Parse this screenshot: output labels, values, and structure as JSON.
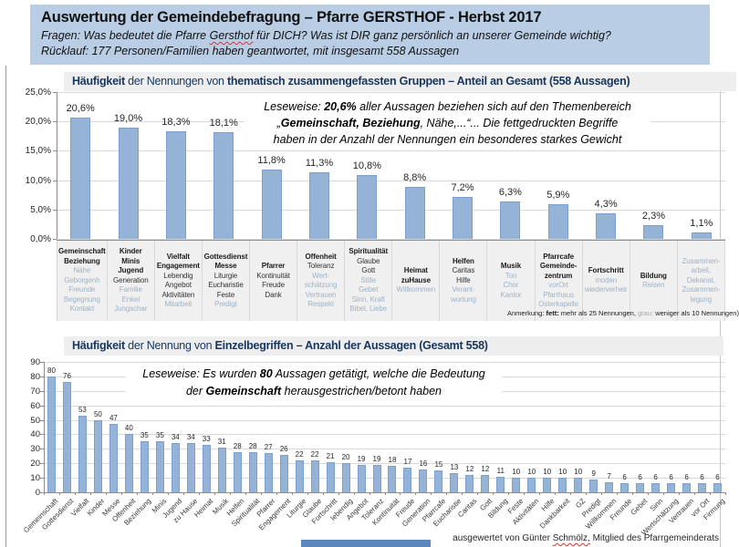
{
  "header": {
    "title": "Auswertung der Gemeindebefragung – Pfarre GERSTHOF  -  Herbst 2017",
    "line2_parts": [
      {
        "t": "Fragen: Was bedeutet die Pfarre "
      },
      {
        "t": "Gersthof",
        "sp": true
      },
      {
        "t": " für DICH? Was ist DIR ganz persönlich an unserer Gemeinde wichtig?"
      }
    ],
    "line3": "Rücklauf: 177 Personen/Familien haben geantwortet, mit insgesamt 558 Aussagen"
  },
  "colors": {
    "header_bg": "#b9cde4",
    "bar_fill": "#95b3d7",
    "bar_border": "#7ba0cd",
    "chart_title": "#17365d",
    "title_band_bg": "#eeeeee",
    "gray_term_text": "#9db3c8",
    "spell_underline": "#d23c2a"
  },
  "chart1": {
    "title_parts": [
      {
        "t": "Häufigkeit",
        "b": true
      },
      {
        "t": " der Nennungen von  "
      },
      {
        "t": "thematisch zusammengefassten Gruppen – Anteil an Gesamt (558 Aussagen)",
        "b": true
      }
    ],
    "y_tick_labels": [
      "25,0%",
      "20,0%",
      "15,0%",
      "10,0%",
      "5,0%",
      "0,0%"
    ],
    "leseweise_lines": [
      [
        {
          "t": "Leseweise: "
        },
        {
          "t": "20,6%",
          "b": true
        },
        {
          "t": " aller  Aussagen beziehen sich auf den Themenbereich"
        }
      ],
      [
        {
          "t": "„"
        },
        {
          "t": "Gemeinschaft, Beziehung",
          "b": true
        },
        {
          "t": ", Nähe,...“... Die fettgedruckten Begriffe"
        }
      ],
      [
        {
          "t": "haben in der Anzahl der Nennungen ein besonderes starkes Gewicht"
        }
      ]
    ],
    "note_parts": [
      {
        "t": "Anmerkung: "
      },
      {
        "t": "fett:",
        "b": true
      },
      {
        "t": " mehr als 25 Nennungen, "
      },
      {
        "t": "grau:",
        "g": true
      },
      {
        "t": " weniger als 10 Nennungen)"
      }
    ]
  },
  "chart2": {
    "title_parts": [
      {
        "t": "Häufigkeit",
        "b": true
      },
      {
        "t": " der Nennung von "
      },
      {
        "t": "Einzelbegriffen – Anzahl der Aussagen (Gesamt 558)",
        "b": true
      }
    ],
    "y_tick_labels": [
      "90",
      "80",
      "70",
      "60",
      "50",
      "40",
      "30",
      "20",
      "10",
      "0"
    ],
    "leseweise_lines": [
      [
        {
          "t": "Leseweise: Es wurden "
        },
        {
          "t": "80",
          "b": true
        },
        {
          "t": " Aussagen getätigt, welche die Bedeutung"
        }
      ],
      [
        {
          "t": " der "
        },
        {
          "t": "Gemeinschaft",
          "b": true
        },
        {
          "t": " herausgestrichen/betont haben"
        }
      ]
    ]
  },
  "footer_parts": [
    {
      "t": "ausgewertet von Günter "
    },
    {
      "t": "Schmölz,",
      "sp": true
    },
    {
      "t": " Mitglied des Pfarrgemeinderats"
    }
  ],
  "chart_data": [
    {
      "type": "bar",
      "title": "Häufigkeit der Nennungen von thematisch zusammengefassten Gruppen – Anteil an Gesamt (558 Aussagen)",
      "xlabel": "",
      "ylabel": "",
      "ylim": [
        0,
        25
      ],
      "ytick_step": 5,
      "grid": true,
      "values": [
        20.6,
        19.0,
        18.3,
        18.1,
        11.8,
        11.3,
        10.8,
        8.8,
        7.2,
        6.3,
        5.9,
        4.3,
        2.3,
        1.1
      ],
      "value_labels": [
        "20,6%",
        "19,0%",
        "18,3%",
        "18,1%",
        "11,8%",
        "11,3%",
        "10,8%",
        "8,8%",
        "7,2%",
        "6,3%",
        "5,9%",
        "4,3%",
        "2,3%",
        "1,1%"
      ],
      "categories": [
        "Gemeinschaft Beziehung",
        "Kinder Minis Jugend",
        "Vielfalt Engagement",
        "Gottesdienst Messe",
        "Pfarrer",
        "Offenheit",
        "Spiritualität",
        "Heimat zuHause",
        "Helfen",
        "Musik",
        "Pfarrcafe Gemeindezentrum",
        "Fortschritt",
        "Bildung",
        "Zusammenarbeit, Dekanat, Zusammenlegung"
      ],
      "category_lines": [
        [
          [
            "b",
            "Gemeinschaft"
          ],
          [
            "b",
            "Beziehung"
          ],
          [
            "g",
            "Nähe"
          ],
          [
            "g",
            "Geborgenh"
          ],
          [
            "g",
            "Freunde"
          ],
          [
            "g",
            "Begegnung"
          ],
          [
            "g",
            "Kontakt"
          ]
        ],
        [
          [
            "b",
            "Kinder"
          ],
          [
            "b",
            "Minis"
          ],
          [
            "b",
            "Jugend"
          ],
          [
            "n",
            "Generation"
          ],
          [
            "g",
            "Familie"
          ],
          [
            "g",
            "Enkel"
          ],
          [
            "g",
            "Jungschar"
          ]
        ],
        [
          [
            "b",
            "Vielfalt"
          ],
          [
            "b",
            "Engagement"
          ],
          [
            "n",
            "Lebendig"
          ],
          [
            "n",
            "Angebot"
          ],
          [
            "n",
            "Aktivitäten"
          ],
          [
            "g",
            "Mitarbeit"
          ]
        ],
        [
          [
            "b",
            "Gottesdienst"
          ],
          [
            "b",
            "Messe"
          ],
          [
            "n",
            "Liturgie"
          ],
          [
            "n",
            "Eucharistie"
          ],
          [
            "n",
            "Feste"
          ],
          [
            "g",
            "Predigt"
          ]
        ],
        [
          [
            "b",
            "Pfarrer"
          ],
          [
            "n",
            "Kontinuität"
          ],
          [
            "n",
            "Freude"
          ],
          [
            "n",
            "Dank"
          ]
        ],
        [
          [
            "b",
            "Offenheit"
          ],
          [
            "n",
            "Toleranz"
          ],
          [
            "g",
            "Wert-"
          ],
          [
            "g",
            "schätzung"
          ],
          [
            "g",
            "Vertrauen"
          ],
          [
            "g",
            "Respekt"
          ]
        ],
        [
          [
            "b",
            "Spiritualität"
          ],
          [
            "n",
            "Glaube"
          ],
          [
            "n",
            "Gott"
          ],
          [
            "g",
            "Stille"
          ],
          [
            "g",
            "Gebet"
          ],
          [
            "g",
            "Sinn, Kraft"
          ],
          [
            "g",
            "Bibel, Liebe"
          ]
        ],
        [
          [
            "b",
            "Heimat"
          ],
          [
            "b",
            "zuHause"
          ],
          [
            "g",
            "Willkommen"
          ]
        ],
        [
          [
            "b",
            "Helfen"
          ],
          [
            "n",
            "Caritas"
          ],
          [
            "n",
            "Hilfe"
          ],
          [
            "g",
            "Verant-"
          ],
          [
            "g",
            "wortung"
          ]
        ],
        [
          [
            "b",
            "Musik"
          ],
          [
            "g",
            "Ton"
          ],
          [
            "g",
            "Chor"
          ],
          [
            "g",
            "Kantor"
          ]
        ],
        [
          [
            "b",
            "Pfarrcafe"
          ],
          [
            "b",
            "Gemeinde-"
          ],
          [
            "b",
            "zentrum"
          ],
          [
            "g",
            "vorOrt"
          ],
          [
            "g",
            "Pfarrhaus"
          ],
          [
            "g",
            "Osterkapelle"
          ]
        ],
        [
          [
            "b",
            "Fortschritt"
          ],
          [
            "g",
            "moden"
          ],
          [
            "g",
            "wiederverheir"
          ]
        ],
        [
          [
            "b",
            "Bildung"
          ],
          [
            "g",
            "Reisen"
          ]
        ],
        [
          [
            "g",
            "Zusammen-"
          ],
          [
            "g",
            "arbeit,"
          ],
          [
            "g",
            "Dekanat,"
          ],
          [
            "g",
            "Zusammen-"
          ],
          [
            "g",
            "legung"
          ]
        ]
      ]
    },
    {
      "type": "bar",
      "title": "Häufigkeit der Nennung von Einzelbegriffen – Anzahl der Aussagen (Gesamt 558)",
      "xlabel": "",
      "ylabel": "",
      "ylim": [
        0,
        90
      ],
      "ytick_step": 10,
      "grid": true,
      "categories": [
        "Gemeinschaft",
        "Gottesdienst",
        "Vielfalt",
        "Kinder",
        "Messe",
        "Offenheit",
        "Beziehung",
        "Minis",
        "Jugend",
        "zu Hause",
        "Heimat",
        "Musik",
        "Helfen",
        "Spiritualität",
        "Pfarrer",
        "Engagement",
        "Liturgie",
        "Glaube",
        "Fortschritt",
        "lebendig",
        "Angebot",
        "Toleranz",
        "Kontinuität",
        "Freude",
        "Generation",
        "Pfarrcafe",
        "Eucharistie",
        "Caritas",
        "Gott",
        "Bildung",
        "Feste",
        "Aktivitäten",
        "Hilfe",
        "Dankbarkeit",
        "GZ",
        "Predigt",
        "Willkommen",
        "Freunde",
        "Gebet",
        "Sinn",
        "Wertschätzung",
        "Vertrauen",
        "vor Ort",
        "Firmung"
      ],
      "values": [
        80,
        76,
        53,
        50,
        47,
        40,
        35,
        35,
        34,
        34,
        33,
        31,
        28,
        28,
        27,
        26,
        22,
        22,
        21,
        20,
        19,
        19,
        18,
        17,
        16,
        15,
        13,
        12,
        12,
        11,
        10,
        10,
        10,
        10,
        10,
        9,
        7,
        6,
        6,
        6,
        6,
        6,
        6,
        6
      ]
    }
  ]
}
